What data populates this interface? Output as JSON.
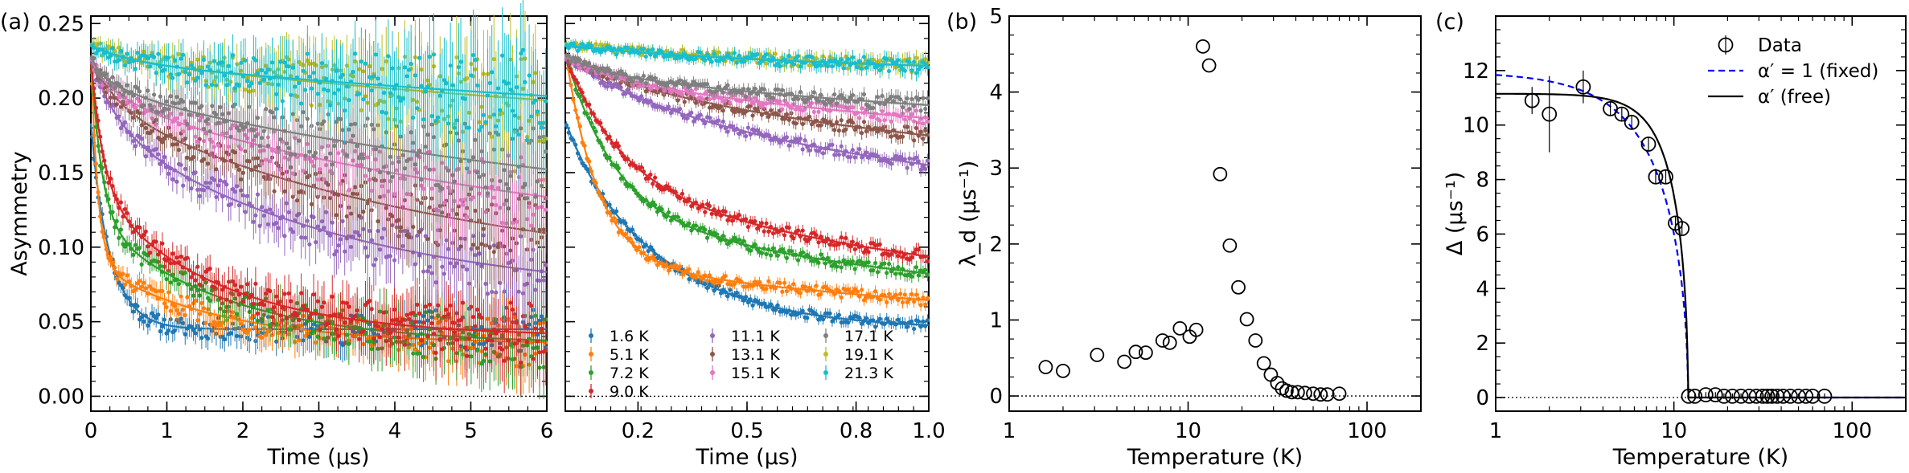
{
  "figure": {
    "description_labels": [
      "(a)",
      "(b)",
      "(c)"
    ]
  },
  "colors": {
    "1.6 K": "#1f77b4",
    "5.1 K": "#ff7f0e",
    "7.2 K": "#2ca02c",
    "9.0 K": "#d62728",
    "11.1 K": "#9467bd",
    "13.1 K": "#8c564b",
    "15.1 K": "#e377c2",
    "17.1 K": "#7f7f7f",
    "19.1 K": "#bcbd22",
    "21.3 K": "#17becf"
  },
  "chart_data": [
    {
      "id": "a-left",
      "panel_label": "(a)",
      "type": "scatter",
      "xlabel": "Time (μs)",
      "ylabel": "Asymmetry",
      "xlim": [
        0,
        6
      ],
      "ylim": [
        -0.01,
        0.255
      ],
      "xticks": [
        0,
        1,
        2,
        3,
        4,
        5,
        6
      ],
      "xtick_labels": [
        "0",
        "1",
        "2",
        "3",
        "4",
        "5",
        "6"
      ],
      "yticks": [
        0.0,
        0.05,
        0.1,
        0.15,
        0.2,
        0.25
      ],
      "ytick_labels": [
        "0.00",
        "0.05",
        "0.10",
        "0.15",
        "0.20",
        "0.25"
      ],
      "reference_line_y": 0,
      "series": [
        {
          "name": "1.6 K",
          "model": {
            "a0": 0.235,
            "fast": [
              0.15,
              0.25
            ],
            "mid": [
              0,
              1
            ],
            "base": 0.045,
            "osc": [
              0.05,
              1.4
            ]
          }
        },
        {
          "name": "5.1 K",
          "model": {
            "a0": 0.232,
            "fast": [
              0.13,
              0.09
            ],
            "mid": [
              0.055,
              1.6
            ],
            "base": 0.035,
            "osc": [
              0,
              1
            ]
          }
        },
        {
          "name": "7.2 K",
          "model": {
            "a0": 0.23,
            "fast": [
              0.105,
              0.14
            ],
            "mid": [
              0.085,
              1.7
            ],
            "base": 0.035,
            "osc": [
              0,
              1
            ]
          }
        },
        {
          "name": "9.0 K",
          "model": {
            "a0": 0.228,
            "fast": [
              0.085,
              0.16
            ],
            "mid": [
              0.1,
              1.6
            ],
            "base": 0.04,
            "osc": [
              0,
              1
            ]
          }
        },
        {
          "name": "11.1 K",
          "model": {
            "a0": 0.227,
            "fast": [
              0.04,
              0.35
            ],
            "mid": [
              0.12,
              3.2
            ],
            "base": 0.065,
            "osc": [
              0,
              1
            ]
          }
        },
        {
          "name": "13.1 K",
          "model": {
            "a0": 0.228,
            "fast": [
              0.03,
              0.4
            ],
            "mid": [
              0.12,
              4.8
            ],
            "base": 0.075,
            "osc": [
              0,
              1
            ]
          }
        },
        {
          "name": "15.1 K",
          "model": {
            "a0": 0.228,
            "fast": [
              0.02,
              0.45
            ],
            "mid": [
              0.11,
              6.5
            ],
            "base": 0.09,
            "osc": [
              0,
              1
            ]
          }
        },
        {
          "name": "17.1 K",
          "model": {
            "a0": 0.229,
            "fast": [
              0.015,
              0.5
            ],
            "mid": [
              0.1,
              8.0
            ],
            "base": 0.105,
            "osc": [
              0,
              1
            ]
          }
        },
        {
          "name": "19.1 K",
          "model": {
            "a0": 0.236,
            "fast": [
              0.01,
              0.5
            ],
            "mid": [
              0.07,
              12.0
            ],
            "base": 0.156,
            "osc": [
              0,
              1
            ]
          }
        },
        {
          "name": "21.3 K",
          "model": {
            "a0": 0.235,
            "fast": [
              0.01,
              0.5
            ],
            "mid": [
              0.06,
              12.0
            ],
            "base": 0.165,
            "osc": [
              0,
              1
            ]
          }
        }
      ]
    },
    {
      "id": "a-right",
      "type": "scatter",
      "xlabel": "Time (μs)",
      "xlim": [
        0,
        1.0
      ],
      "ylim": [
        -0.01,
        0.255
      ],
      "xticks": [
        0.2,
        0.5,
        0.8,
        1.0
      ],
      "xtick_labels": [
        "0.2",
        "0.5",
        "0.8",
        "1.0"
      ],
      "reference_line_y": 0,
      "legend": {
        "placement": "lower-left",
        "columns": [
          [
            "1.6 K",
            "5.1 K",
            "7.2 K",
            "9.0 K"
          ],
          [
            "11.1 K",
            "13.1 K",
            "15.1 K"
          ],
          [
            "17.1 K",
            "19.1 K",
            "21.3 K"
          ]
        ]
      },
      "series_ref": "a-left"
    },
    {
      "id": "b",
      "panel_label": "(b)",
      "type": "scatter",
      "xscale": "log",
      "xlabel": "Temperature (K)",
      "ylabel": "λ_d (μs⁻¹)",
      "xlim": [
        1,
        200
      ],
      "ylim": [
        -0.2,
        5
      ],
      "xticks": [
        1,
        10,
        100
      ],
      "xtick_labels": [
        "1",
        "10",
        "100"
      ],
      "yticks": [
        0,
        1,
        2,
        3,
        4,
        5
      ],
      "ytick_labels": [
        "0",
        "1",
        "2",
        "3",
        "4",
        "5"
      ],
      "reference_line_y": 0,
      "x": [
        1.6,
        2.0,
        3.1,
        4.4,
        5.1,
        5.8,
        7.2,
        7.9,
        9.0,
        10.2,
        11.1,
        12.1,
        13.1,
        15.1,
        17.1,
        19.1,
        21.3,
        23.8,
        26.5,
        29.0,
        31.5,
        33.5,
        35.5,
        38.0,
        41.0,
        45.0,
        50.0,
        55.0,
        60.0,
        70.0
      ],
      "y": [
        0.38,
        0.33,
        0.54,
        0.45,
        0.58,
        0.57,
        0.73,
        0.7,
        0.89,
        0.78,
        0.87,
        4.6,
        4.35,
        2.92,
        1.98,
        1.43,
        1.01,
        0.73,
        0.43,
        0.28,
        0.17,
        0.1,
        0.07,
        0.05,
        0.05,
        0.04,
        0.03,
        0.02,
        0.02,
        0.03
      ]
    },
    {
      "id": "c",
      "panel_label": "(c)",
      "type": "scatter",
      "xscale": "log",
      "xlabel": "Temperature (K)",
      "ylabel": "Δ (μs⁻¹)",
      "xlim": [
        1,
        200
      ],
      "ylim": [
        -0.5,
        14
      ],
      "xticks": [
        1,
        10,
        100
      ],
      "xtick_labels": [
        "1",
        "10",
        "100"
      ],
      "yticks": [
        0,
        2,
        4,
        6,
        8,
        10,
        12
      ],
      "ytick_labels": [
        "0",
        "2",
        "4",
        "6",
        "8",
        "10",
        "12"
      ],
      "reference_line_y": 0,
      "x": [
        1.6,
        2.0,
        3.1,
        4.4,
        5.1,
        5.8,
        7.2,
        7.9,
        9.0,
        10.2,
        11.1,
        12.1,
        13.1,
        15.1,
        17.1,
        19.1,
        21.3,
        23.8,
        26.5,
        29.0,
        31.5,
        33.5,
        35.5,
        38.0,
        41.0,
        45.0,
        50.0,
        55.0,
        60.0,
        70.0
      ],
      "y": [
        10.9,
        10.4,
        11.4,
        10.6,
        10.4,
        10.1,
        9.3,
        8.1,
        8.1,
        6.4,
        6.2,
        0.05,
        0.05,
        0.1,
        0.1,
        0.05,
        0.05,
        0.05,
        0.05,
        0.05,
        0.05,
        0.05,
        0.05,
        0.05,
        0.05,
        0.05,
        0.05,
        0.05,
        0.05,
        0.05
      ],
      "yerr": [
        0.5,
        1.4,
        0.6,
        0.25,
        0.25,
        0.25,
        0.25,
        0.25,
        0.25,
        0.25,
        0.25,
        0.1,
        0.1,
        0.1,
        0.1,
        0.1,
        0.1,
        0.1,
        0.1,
        0.1,
        0.1,
        0.1,
        0.1,
        0.1,
        0.1,
        0.1,
        0.1,
        0.1,
        0.1,
        0.1
      ],
      "fits": [
        {
          "name": "α′ = 1 (fixed)",
          "style": "dashed",
          "color": "#0000ff",
          "delta0": 11.95,
          "tc": 12.0,
          "alpha": 1.0
        },
        {
          "name": "α′ (free)",
          "style": "solid",
          "color": "#000000",
          "delta0": 11.15,
          "tc": 12.0,
          "alpha": 1.7
        }
      ],
      "legend": {
        "placement": "top-right",
        "entries": [
          {
            "label": "Data",
            "marker": "open-circle-errorbar"
          },
          {
            "label": "α′ = 1 (fixed)",
            "marker": "dashed-line",
            "color": "#0000ff"
          },
          {
            "label": "α′ (free)",
            "marker": "solid-line",
            "color": "#000000"
          }
        ]
      }
    }
  ]
}
